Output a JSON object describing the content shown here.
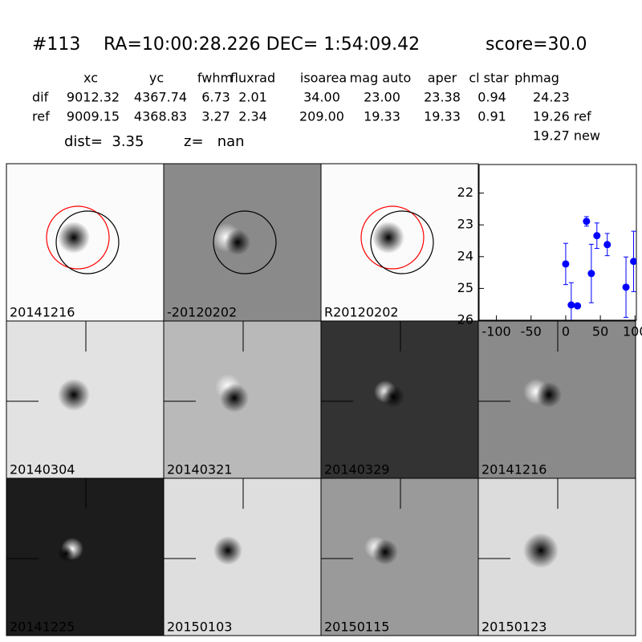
{
  "header": {
    "object": "#113",
    "coords": "RA=10:00:28.226 DEC= 1:54:09.42",
    "score": "score=30.0"
  },
  "table": {
    "columns": [
      "xc",
      "yc",
      "fwhm",
      "fluxrad",
      "isoarea",
      "mag auto",
      "aper",
      "cl star",
      "phmag"
    ],
    "rows": [
      [
        "dif",
        "9012.32",
        "4367.74",
        "6.73",
        "2.01",
        "34.00",
        "23.00",
        "23.38",
        "0.94",
        "24.23"
      ],
      [
        "ref",
        "9009.15",
        "4368.83",
        "3.27",
        "2.34",
        "209.00",
        "19.33",
        "19.33",
        "0.91",
        "19.26 ref"
      ]
    ],
    "extra": "19.27 new"
  },
  "distance": {
    "dist": "dist=  3.35",
    "z": "z=   nan"
  },
  "panels": [
    {
      "label": "20141216"
    },
    {
      "label": "-20120202"
    },
    {
      "label": "R20120202"
    },
    {
      "label": "20140304"
    },
    {
      "label": "20140321"
    },
    {
      "label": "20140329"
    },
    {
      "label": "20141216",
      "color": "#ff0000"
    },
    {
      "label": "20141225"
    },
    {
      "label": "20150103"
    },
    {
      "label": "20150115"
    },
    {
      "label": "20150123"
    }
  ],
  "chart_data": {
    "type": "errorbar",
    "color": "#0000ff",
    "x": [
      0,
      8,
      17,
      30,
      37,
      45,
      60,
      87,
      98
    ],
    "values": [
      24.23,
      25.52,
      25.55,
      22.89,
      24.53,
      23.34,
      23.62,
      24.96,
      24.15
    ],
    "errors": [
      0.65,
      0.7,
      0.05,
      0.15,
      0.92,
      0.4,
      0.35,
      0.95,
      0.95
    ],
    "xlim": [
      -125,
      102
    ],
    "xticks": [
      -100,
      -50,
      0,
      50,
      100
    ],
    "ylim": [
      26,
      21.1
    ],
    "yticks": [
      22,
      23,
      24,
      25,
      26
    ]
  }
}
